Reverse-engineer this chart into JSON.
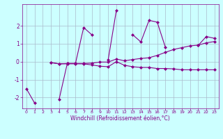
{
  "x": [
    0,
    1,
    2,
    3,
    4,
    5,
    6,
    7,
    8,
    9,
    10,
    11,
    12,
    13,
    14,
    15,
    16,
    17,
    18,
    19,
    20,
    21,
    22,
    23
  ],
  "series1": [
    -1.5,
    -2.3,
    null,
    null,
    -2.1,
    -0.1,
    -0.1,
    1.9,
    1.5,
    null,
    0.1,
    2.85,
    null,
    1.5,
    1.1,
    2.3,
    2.2,
    0.8,
    null,
    null,
    null,
    0.9,
    1.4,
    1.3
  ],
  "series2": [
    null,
    null,
    null,
    -0.05,
    -0.12,
    -0.12,
    -0.12,
    -0.12,
    -0.18,
    -0.25,
    -0.28,
    0.0,
    -0.2,
    -0.28,
    -0.32,
    -0.32,
    -0.38,
    -0.38,
    -0.4,
    -0.45,
    -0.45,
    -0.45,
    -0.45,
    -0.45
  ],
  "series3": [
    null,
    null,
    null,
    -0.05,
    -0.12,
    -0.1,
    -0.1,
    -0.1,
    -0.08,
    -0.02,
    -0.02,
    0.15,
    0.05,
    0.12,
    0.18,
    0.22,
    0.35,
    0.52,
    0.68,
    0.78,
    0.88,
    0.92,
    1.05,
    1.12
  ],
  "line_color": "#880088",
  "bg_color": "#ccffff",
  "grid_color": "#aabbcc",
  "xlabel": "Windchill (Refroidissement éolien,°C)",
  "xlim": [
    -0.5,
    23.5
  ],
  "ylim": [
    -2.6,
    3.2
  ],
  "yticks": [
    -2,
    -1,
    0,
    1,
    2
  ],
  "xticks": [
    0,
    1,
    2,
    3,
    4,
    5,
    6,
    7,
    8,
    9,
    10,
    11,
    12,
    13,
    14,
    15,
    16,
    17,
    18,
    19,
    20,
    21,
    22,
    23
  ]
}
